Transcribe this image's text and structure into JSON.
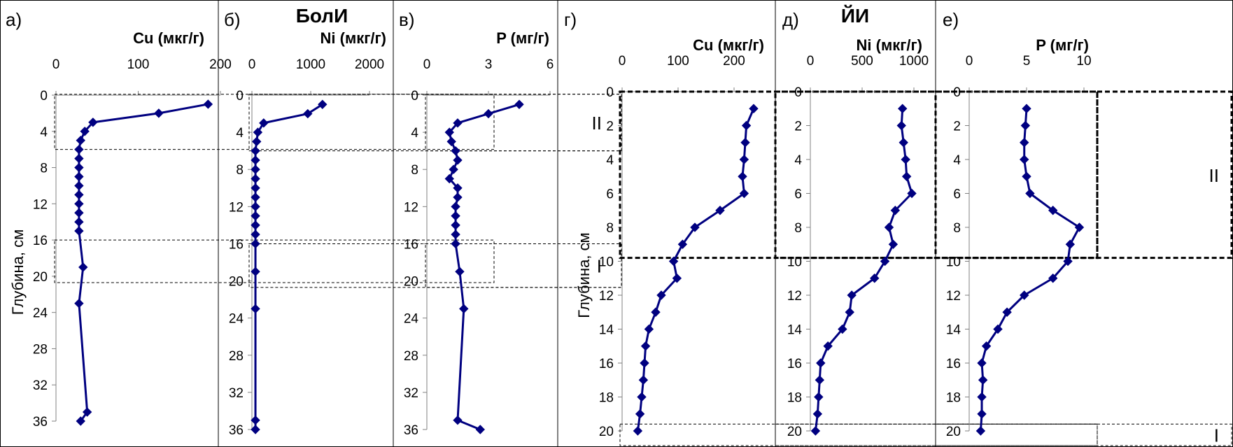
{
  "site_labels": [
    "БолИ",
    "ЙИ"
  ],
  "y_axis_label": "Глубина, см",
  "colors": {
    "series": "#000080",
    "axis": "#808080",
    "frame": "#000000"
  },
  "chart_data": [
    {
      "type": "line",
      "panel_label": "а)",
      "xlabel": "Cu (мкг/г)",
      "xlim": [
        0,
        200
      ],
      "xticks": [
        0,
        100,
        200
      ],
      "ylim": [
        0,
        36
      ],
      "yticks": [
        0,
        4,
        8,
        12,
        16,
        20,
        24,
        28,
        32,
        36
      ],
      "ylabel": "Глубина, см",
      "x": [
        185,
        125,
        45,
        35,
        30,
        28,
        28,
        28,
        28,
        28,
        28,
        28,
        28,
        28,
        28,
        33,
        28,
        38,
        30
      ],
      "y": [
        1,
        2,
        3,
        4,
        5,
        6,
        7,
        8,
        9,
        10,
        11,
        12,
        13,
        14,
        15,
        19,
        23,
        35,
        36
      ],
      "zones": [
        {
          "label": "",
          "top": -0.1,
          "bottom": 6
        },
        {
          "label": "",
          "top": 16,
          "bottom": 20.7
        }
      ]
    },
    {
      "type": "line",
      "panel_label": "б)",
      "xlabel": "Ni (мкг/г)",
      "xlim": [
        0,
        2000
      ],
      "xticks": [
        0,
        1000,
        2000
      ],
      "ylim": [
        0,
        36
      ],
      "yticks": [
        0,
        4,
        8,
        12,
        16,
        20,
        24,
        28,
        32,
        36
      ],
      "x": [
        1200,
        950,
        200,
        100,
        80,
        60,
        60,
        60,
        60,
        60,
        60,
        60,
        60,
        60,
        60,
        60,
        60,
        60,
        60,
        60
      ],
      "y": [
        1,
        2,
        3,
        4,
        5,
        6,
        7,
        8,
        9,
        10,
        11,
        12,
        13,
        14,
        15,
        16,
        19,
        23,
        35,
        36
      ],
      "zones": [
        {
          "label": "",
          "top": -0.1,
          "bottom": 6
        },
        {
          "label": "",
          "top": 16,
          "bottom": 20.7
        }
      ]
    },
    {
      "type": "line",
      "panel_label": "в)",
      "xlabel": "P (мг/г)",
      "xlim": [
        0,
        6
      ],
      "xticks": [
        0,
        3,
        6
      ],
      "ylim": [
        0,
        36
      ],
      "yticks": [
        0,
        4,
        8,
        12,
        16,
        20,
        24,
        28,
        32,
        36
      ],
      "x": [
        4.5,
        3.0,
        1.5,
        1.1,
        1.2,
        1.4,
        1.5,
        1.3,
        1.1,
        1.5,
        1.5,
        1.4,
        1.4,
        1.4,
        1.4,
        1.4,
        1.6,
        1.8,
        1.5,
        2.6
      ],
      "y": [
        1,
        2,
        3,
        4,
        5,
        6,
        7,
        8,
        9,
        10,
        11,
        12,
        13,
        14,
        15,
        16,
        19,
        23,
        35,
        36
      ],
      "zones": [
        {
          "label": "II",
          "top": -0.1,
          "bottom": 6
        },
        {
          "label": "I",
          "top": 16,
          "bottom": 20.7
        }
      ]
    },
    {
      "type": "line",
      "panel_label": "г)",
      "xlabel": "Cu (мкг/г)",
      "xlim": [
        0,
        250
      ],
      "xticks": [
        0,
        100,
        200
      ],
      "ylim": [
        0,
        20
      ],
      "yticks": [
        0,
        2,
        4,
        6,
        8,
        10,
        12,
        14,
        16,
        18,
        20
      ],
      "ylabel": "Глубина, см",
      "x": [
        235,
        222,
        220,
        218,
        215,
        218,
        175,
        130,
        108,
        92,
        98,
        70,
        60,
        48,
        42,
        40,
        38,
        35,
        32,
        28
      ],
      "y": [
        1,
        2,
        3,
        4,
        5,
        6,
        7,
        8,
        9,
        10,
        11,
        12,
        13,
        14,
        15,
        16,
        17,
        18,
        19,
        20
      ],
      "zones": [
        {
          "label": "",
          "top": 0,
          "bottom": 9.8
        },
        {
          "label": "",
          "top": 19.6,
          "bottom": 21
        }
      ]
    },
    {
      "type": "line",
      "panel_label": "д)",
      "xlabel": "Ni (мкг/г)",
      "xlim": [
        0,
        1000
      ],
      "xticks": [
        0,
        500,
        1000
      ],
      "ylim": [
        0,
        20
      ],
      "yticks": [
        0,
        2,
        4,
        6,
        8,
        10,
        12,
        14,
        16,
        18,
        20
      ],
      "x": [
        890,
        880,
        900,
        920,
        930,
        980,
        820,
        760,
        800,
        720,
        620,
        400,
        380,
        310,
        170,
        100,
        90,
        80,
        70,
        50
      ],
      "y": [
        1,
        2,
        3,
        4,
        5,
        6,
        7,
        8,
        9,
        10,
        11,
        12,
        13,
        14,
        15,
        16,
        17,
        18,
        19,
        20
      ],
      "zones": [
        {
          "label": "",
          "top": 0,
          "bottom": 9.8
        },
        {
          "label": "",
          "top": 19.6,
          "bottom": 21
        }
      ]
    },
    {
      "type": "line",
      "panel_label": "е)",
      "xlabel": "P (мг/г)",
      "xlim": [
        0,
        10
      ],
      "xticks": [
        0,
        5,
        10
      ],
      "ylim": [
        0,
        20
      ],
      "yticks": [
        0,
        2,
        4,
        6,
        8,
        10,
        12,
        14,
        16,
        18,
        20
      ],
      "x": [
        5.0,
        4.9,
        4.8,
        4.8,
        5.0,
        5.3,
        7.3,
        9.6,
        8.8,
        8.6,
        7.3,
        4.8,
        3.3,
        2.5,
        1.5,
        1.1,
        1.2,
        1.1,
        1.1,
        1.0
      ],
      "y": [
        1,
        2,
        3,
        4,
        5,
        6,
        7,
        8,
        9,
        10,
        11,
        12,
        13,
        14,
        15,
        16,
        17,
        18,
        19,
        20
      ],
      "zones": [
        {
          "label": "II",
          "top": 0,
          "bottom": 9.8
        },
        {
          "label": "I",
          "top": 19.6,
          "bottom": 21
        }
      ]
    }
  ]
}
